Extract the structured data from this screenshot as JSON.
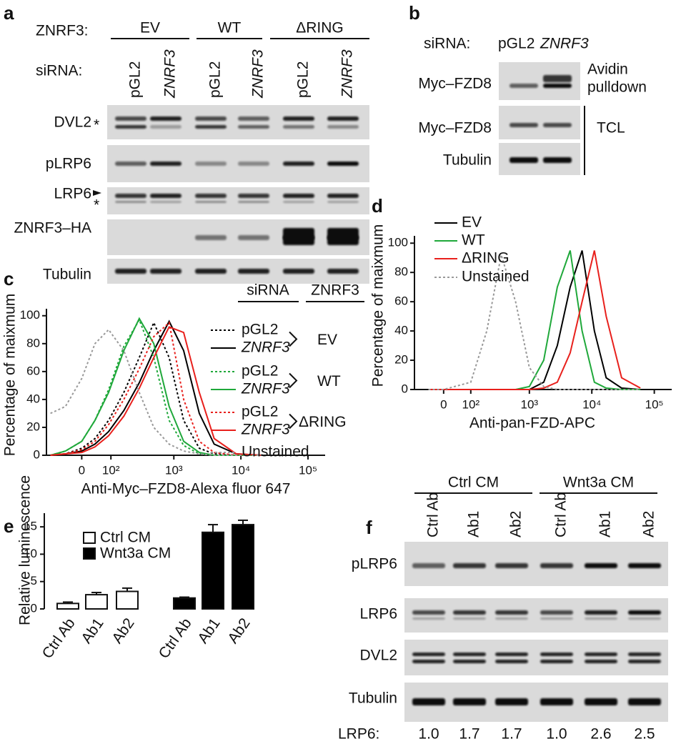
{
  "panel_a": {
    "letter": "a",
    "znrf3_label": "ZNRF3:",
    "groups": [
      "EV",
      "WT",
      "ΔRING"
    ],
    "sirna_label": "siRNA:",
    "lanes": [
      "pGL2",
      "ZNRF3",
      "pGL2",
      "ZNRF3",
      "pGL2",
      "ZNRF3"
    ],
    "blots": [
      "DVL2",
      "pLRP6",
      "LRP6",
      "ZNRF3–HA",
      "Tubulin"
    ],
    "markers": [
      "*",
      "*"
    ]
  },
  "panel_b": {
    "letter": "b",
    "sirna_label": "siRNA:",
    "lanes": [
      "pGL2",
      "ZNRF3"
    ],
    "blots": [
      "Myc–FZD8",
      "Myc–FZD8",
      "Tubulin"
    ],
    "pulldown_label": [
      "Avidin",
      "pulldown"
    ],
    "tcl_label": "TCL"
  },
  "panel_f": {
    "letter": "f",
    "groups": [
      "Ctrl CM",
      "Wnt3a CM"
    ],
    "lanes": [
      "Ctrl Ab",
      "Ab1",
      "Ab2",
      "Ctrl Ab",
      "Ab1",
      "Ab2"
    ],
    "blots": [
      "pLRP6",
      "LRP6",
      "DVL2",
      "Tubulin"
    ],
    "quant_label": "LRP6:",
    "quant": [
      "1.0",
      "1.7",
      "1.7",
      "1.0",
      "2.6",
      "2.5"
    ]
  },
  "chart_data": [
    {
      "type": "line",
      "panel": "c",
      "x_label": "Anti-Myc–FZD8-Alexa fluor 647",
      "y_label": "Percentage of maixmum",
      "scale": "biexponential",
      "xlim": [
        -130,
        180000
      ],
      "ylim": [
        0,
        105
      ],
      "yticks": [
        0,
        20,
        40,
        60,
        80,
        100
      ],
      "xticks": [
        0,
        {
          "value": 100,
          "label": "10²"
        },
        {
          "value": 1000,
          "label": "10³"
        },
        {
          "value": 10000,
          "label": "10⁴"
        },
        {
          "value": 100000,
          "label": "10⁵"
        }
      ],
      "legend_headers": [
        "siRNA",
        "ZNRF3"
      ],
      "legend_groups": [
        "EV",
        "WT",
        "ΔRING"
      ],
      "legend_group_colors": [
        "#000000",
        "#1fa83a",
        "#e8201c"
      ],
      "x": [
        -110,
        -50,
        0,
        40,
        90,
        170,
        300,
        500,
        850,
        1400,
        2400,
        4000,
        8500,
        20000
      ],
      "series": [
        {
          "name": "pGL2",
          "color": "#000000",
          "dash": true,
          "italic": false,
          "values": [
            0,
            1,
            5,
            12,
            25,
            45,
            70,
            95,
            70,
            25,
            5,
            1,
            0,
            0
          ]
        },
        {
          "name": "ZNRF3",
          "color": "#000000",
          "dash": false,
          "italic": true,
          "values": [
            0,
            1,
            3,
            8,
            17,
            32,
            52,
            75,
            96,
            75,
            30,
            8,
            1,
            0
          ]
        },
        {
          "name": "pGL2",
          "color": "#1fa83a",
          "dash": true,
          "italic": false,
          "values": [
            0,
            3,
            10,
            25,
            47,
            78,
            97,
            70,
            25,
            7,
            1,
            0,
            0,
            0
          ]
        },
        {
          "name": "ZNRF3",
          "color": "#1fa83a",
          "dash": false,
          "italic": true,
          "values": [
            0,
            3,
            10,
            25,
            45,
            75,
            98,
            80,
            35,
            10,
            2,
            0,
            0,
            0
          ]
        },
        {
          "name": "pGL2",
          "color": "#e8201c",
          "dash": true,
          "italic": false,
          "values": [
            0,
            1,
            4,
            10,
            22,
            40,
            62,
            85,
            95,
            40,
            10,
            2,
            0,
            0
          ]
        },
        {
          "name": "ZNRF3",
          "color": "#e8201c",
          "dash": false,
          "italic": true,
          "values": [
            0,
            1,
            2,
            6,
            14,
            28,
            48,
            70,
            92,
            88,
            45,
            12,
            1,
            0
          ]
        },
        {
          "name": "Unstained",
          "color": "#999999",
          "dash": true,
          "italic": false,
          "values": [
            30,
            35,
            55,
            80,
            90,
            75,
            45,
            20,
            8,
            3,
            1,
            0,
            0,
            0
          ]
        }
      ]
    },
    {
      "type": "line",
      "panel": "d",
      "x_label": "Anti-pan-FZD-APC",
      "y_label": "Percentage of maixmum",
      "scale": "biexponential",
      "xlim": [
        -110,
        190000
      ],
      "ylim": [
        0,
        105
      ],
      "yticks": [
        0,
        20,
        40,
        60,
        80,
        100
      ],
      "xticks": [
        0,
        {
          "value": 100,
          "label": "10²"
        },
        {
          "value": 1000,
          "label": "10³"
        },
        {
          "value": 10000,
          "label": "10⁴"
        },
        {
          "value": 100000,
          "label": "10⁵"
        }
      ],
      "x": [
        -50,
        0,
        100,
        200,
        350,
        600,
        1000,
        1700,
        2800,
        4500,
        7000,
        11000,
        17000,
        30000,
        60000
      ],
      "series": [
        {
          "name": "EV",
          "color": "#000000",
          "dash": false,
          "values": [
            0,
            0,
            0,
            0,
            0,
            0,
            0,
            5,
            30,
            70,
            95,
            40,
            8,
            1,
            0
          ]
        },
        {
          "name": "WT",
          "color": "#1fa83a",
          "dash": false,
          "values": [
            0,
            0,
            0,
            0,
            0,
            0,
            2,
            20,
            70,
            95,
            40,
            5,
            1,
            0,
            0
          ]
        },
        {
          "name": "ΔRING",
          "color": "#e8201c",
          "dash": false,
          "values": [
            0,
            0,
            0,
            0,
            0,
            0,
            0,
            1,
            5,
            25,
            60,
            95,
            50,
            8,
            1
          ]
        },
        {
          "name": "Unstained",
          "color": "#999999",
          "dash": true,
          "values": [
            0,
            0,
            5,
            40,
            92,
            60,
            15,
            2,
            0,
            0,
            0,
            0,
            0,
            0,
            0
          ]
        }
      ]
    },
    {
      "type": "bar",
      "panel": "e",
      "y_label": "Relative luminescence",
      "ylim": [
        0,
        17.5
      ],
      "yticks": [
        0,
        5,
        10,
        15
      ],
      "categories": [
        "Ctrl Ab",
        "Ab1",
        "Ab2",
        "Ctrl Ab",
        "Ab1",
        "Ab2"
      ],
      "series": [
        {
          "name": "Ctrl CM",
          "color": "#ffffff",
          "values": [
            1.0,
            2.6,
            3.2,
            null,
            null,
            null
          ],
          "errors": [
            0.25,
            0.4,
            0.6,
            null,
            null,
            null
          ]
        },
        {
          "name": "Wnt3a CM",
          "color": "#000000",
          "values": [
            null,
            null,
            null,
            2.0,
            14.0,
            15.4
          ],
          "errors": [
            null,
            null,
            null,
            0.15,
            1.4,
            0.8
          ]
        }
      ]
    }
  ]
}
